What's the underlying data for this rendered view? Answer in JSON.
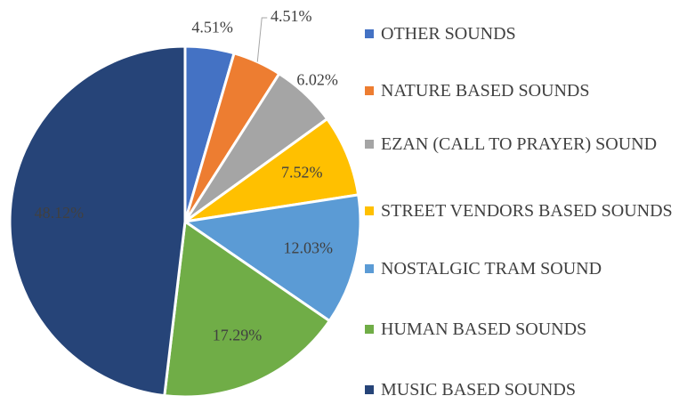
{
  "chart_data": {
    "type": "pie",
    "categories": [
      "OTHER SOUNDS",
      "NATURE BASED SOUNDS",
      "EZAN (CALL TO PRAYER) SOUND",
      "STREET VENDORS BASED SOUNDS",
      "NOSTALGIC TRAM SOUND",
      "HUMAN BASED SOUNDS",
      "MUSIC BASED SOUNDS"
    ],
    "values": [
      4.51,
      4.51,
      6.02,
      7.52,
      12.03,
      17.29,
      48.12
    ],
    "value_labels": [
      "4.51%",
      "4.51%",
      "6.02%",
      "7.52%",
      "12.03%",
      "17.29%",
      "48.12%"
    ],
    "colors": [
      "#4472c4",
      "#ed7d31",
      "#a5a5a5",
      "#ffc000",
      "#5b9bd5",
      "#70ad47",
      "#264478"
    ],
    "legend": "right"
  }
}
